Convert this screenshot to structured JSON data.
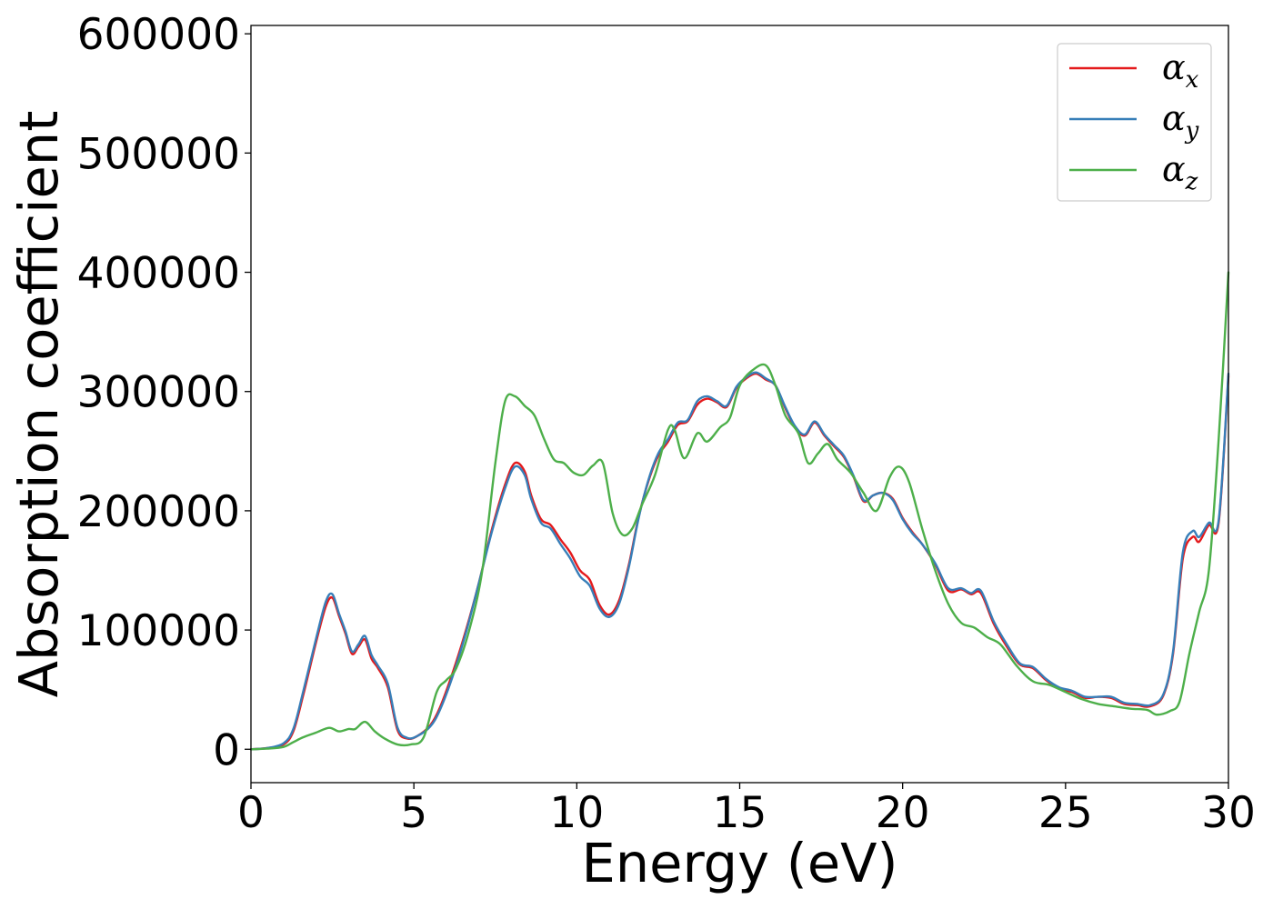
{
  "chart_data": {
    "type": "line",
    "title": "",
    "xlabel": "Energy (eV)",
    "ylabel": "Absorption coefficient",
    "xlim": [
      0,
      30
    ],
    "ylim": [
      -28000,
      607000
    ],
    "xticks": [
      0,
      5,
      10,
      15,
      20,
      25,
      30
    ],
    "xtick_labels": [
      "0",
      "5",
      "10",
      "15",
      "20",
      "25",
      "30"
    ],
    "yticks": [
      0,
      100000,
      200000,
      300000,
      400000,
      500000,
      600000
    ],
    "ytick_labels": [
      "0",
      "100000",
      "200000",
      "300000",
      "400000",
      "500000",
      "600000"
    ],
    "grid": false,
    "legend_position": "top-right",
    "series": [
      {
        "name": "αx",
        "symbol": "α",
        "subscript": "x",
        "color": "#e41a1c",
        "x": [
          0,
          0.5,
          1.0,
          1.3,
          1.6,
          2.0,
          2.3,
          2.5,
          2.7,
          2.9,
          3.1,
          3.3,
          3.5,
          3.7,
          3.9,
          4.2,
          4.5,
          4.8,
          5.1,
          5.5,
          5.8,
          6.2,
          6.6,
          7.0,
          7.4,
          7.8,
          8.1,
          8.4,
          8.6,
          8.9,
          9.2,
          9.5,
          9.8,
          10.1,
          10.4,
          10.7,
          11.0,
          11.3,
          11.6,
          11.9,
          12.2,
          12.5,
          12.8,
          13.1,
          13.4,
          13.7,
          14.0,
          14.3,
          14.6,
          14.9,
          15.2,
          15.5,
          15.8,
          16.1,
          16.4,
          16.7,
          17.0,
          17.3,
          17.6,
          17.9,
          18.2,
          18.5,
          18.8,
          19.1,
          19.4,
          19.7,
          20.0,
          20.3,
          20.6,
          21.0,
          21.4,
          21.8,
          22.1,
          22.4,
          22.8,
          23.2,
          23.6,
          24.0,
          24.4,
          24.8,
          25.2,
          25.6,
          26.0,
          26.4,
          26.8,
          27.2,
          27.6,
          28.0,
          28.3,
          28.6,
          28.9,
          29.1,
          29.4,
          29.7,
          30.0
        ],
        "values": [
          0,
          1000,
          4000,
          15000,
          45000,
          90000,
          120000,
          127000,
          112000,
          97000,
          80000,
          86000,
          92000,
          76000,
          68000,
          52000,
          16000,
          9000,
          11000,
          20000,
          35000,
          65000,
          100000,
          140000,
          185000,
          222000,
          240000,
          233000,
          213000,
          193000,
          188000,
          176000,
          165000,
          150000,
          142000,
          121000,
          113000,
          125000,
          155000,
          195000,
          225000,
          246000,
          258000,
          272000,
          275000,
          289000,
          294000,
          291000,
          287000,
          303000,
          311000,
          315000,
          310000,
          305000,
          286000,
          270000,
          263000,
          274000,
          263000,
          254000,
          245000,
          228000,
          208000,
          213000,
          215000,
          210000,
          194000,
          182000,
          172000,
          155000,
          133000,
          134000,
          130000,
          131000,
          105000,
          86000,
          71000,
          68000,
          58000,
          51000,
          48000,
          43000,
          44000,
          43000,
          38000,
          37000,
          36000,
          45000,
          80000,
          160000,
          178000,
          174000,
          188000,
          190000,
          313000
        ]
      },
      {
        "name": "αy",
        "symbol": "α",
        "subscript": "y",
        "color": "#377eb8",
        "x": [
          0,
          0.5,
          1.0,
          1.3,
          1.6,
          2.0,
          2.3,
          2.5,
          2.7,
          2.9,
          3.1,
          3.3,
          3.5,
          3.7,
          3.9,
          4.2,
          4.5,
          4.8,
          5.1,
          5.5,
          5.8,
          6.2,
          6.6,
          7.0,
          7.4,
          7.8,
          8.1,
          8.4,
          8.6,
          8.9,
          9.2,
          9.5,
          9.8,
          10.1,
          10.4,
          10.7,
          11.0,
          11.3,
          11.6,
          11.9,
          12.2,
          12.5,
          12.8,
          13.1,
          13.4,
          13.7,
          14.0,
          14.3,
          14.6,
          14.9,
          15.2,
          15.5,
          15.8,
          16.1,
          16.4,
          16.7,
          17.0,
          17.3,
          17.6,
          17.9,
          18.2,
          18.5,
          18.8,
          19.1,
          19.4,
          19.7,
          20.0,
          20.3,
          20.6,
          21.0,
          21.4,
          21.8,
          22.1,
          22.4,
          22.8,
          23.2,
          23.6,
          24.0,
          24.4,
          24.8,
          25.2,
          25.6,
          26.0,
          26.4,
          26.8,
          27.2,
          27.6,
          28.0,
          28.3,
          28.6,
          28.9,
          29.1,
          29.4,
          29.7,
          30.0
        ],
        "values": [
          0,
          1000,
          5000,
          17000,
          48000,
          93000,
          124000,
          130000,
          114000,
          99000,
          82000,
          88000,
          95000,
          79000,
          70000,
          55000,
          18000,
          9500,
          11000,
          19000,
          33000,
          62000,
          98000,
          140000,
          183000,
          219000,
          237000,
          230000,
          210000,
          190000,
          185000,
          172000,
          160000,
          145000,
          137000,
          118000,
          111000,
          122000,
          153000,
          194000,
          226000,
          248000,
          260000,
          274000,
          276000,
          292000,
          296000,
          292000,
          288000,
          304000,
          312000,
          316000,
          311000,
          305000,
          287000,
          271000,
          264000,
          275000,
          264000,
          255000,
          246000,
          229000,
          209000,
          213000,
          215000,
          209000,
          193000,
          181000,
          172000,
          156000,
          135000,
          135000,
          131000,
          133000,
          107000,
          88000,
          72000,
          69000,
          59000,
          52000,
          49000,
          44000,
          44000,
          44000,
          39000,
          38000,
          37000,
          46000,
          82000,
          165000,
          183000,
          178000,
          190000,
          192000,
          315000
        ]
      },
      {
        "name": "αz",
        "symbol": "α",
        "subscript": "z",
        "color": "#4daf4a",
        "x": [
          0,
          0.5,
          1.0,
          1.3,
          1.6,
          2.0,
          2.4,
          2.7,
          3.0,
          3.2,
          3.5,
          3.8,
          4.1,
          4.5,
          4.9,
          5.3,
          5.7,
          6.0,
          6.3,
          6.7,
          7.1,
          7.5,
          7.8,
          8.1,
          8.4,
          8.7,
          9.0,
          9.3,
          9.6,
          9.9,
          10.2,
          10.5,
          10.8,
          11.1,
          11.4,
          11.7,
          12.0,
          12.4,
          12.8,
          13.0,
          13.3,
          13.7,
          14.0,
          14.4,
          14.7,
          15.0,
          15.4,
          15.8,
          16.1,
          16.4,
          16.8,
          17.1,
          17.4,
          17.7,
          18.0,
          18.4,
          18.8,
          19.2,
          19.6,
          19.9,
          20.2,
          20.6,
          21.0,
          21.4,
          21.8,
          22.2,
          22.6,
          23.0,
          23.5,
          24.0,
          24.5,
          25.0,
          25.5,
          26.0,
          26.5,
          27.0,
          27.5,
          27.8,
          28.2,
          28.5,
          28.8,
          29.1,
          29.4,
          29.7,
          30.0
        ],
        "values": [
          0,
          500,
          2000,
          6000,
          10000,
          14000,
          18000,
          15000,
          17000,
          17000,
          23000,
          15000,
          9000,
          4000,
          4000,
          10000,
          48000,
          58000,
          68000,
          100000,
          150000,
          240000,
          292000,
          296000,
          288000,
          280000,
          260000,
          243000,
          240000,
          232000,
          230000,
          238000,
          240000,
          198000,
          180000,
          185000,
          205000,
          230000,
          268000,
          268000,
          244000,
          265000,
          258000,
          270000,
          278000,
          305000,
          318000,
          322000,
          305000,
          280000,
          265000,
          240000,
          248000,
          256000,
          243000,
          232000,
          215000,
          200000,
          228000,
          237000,
          224000,
          185000,
          150000,
          122000,
          106000,
          102000,
          94000,
          88000,
          70000,
          57000,
          54000,
          48000,
          42000,
          38000,
          36000,
          34000,
          33000,
          29000,
          32000,
          40000,
          80000,
          115000,
          150000,
          260000,
          400000
        ]
      }
    ]
  }
}
